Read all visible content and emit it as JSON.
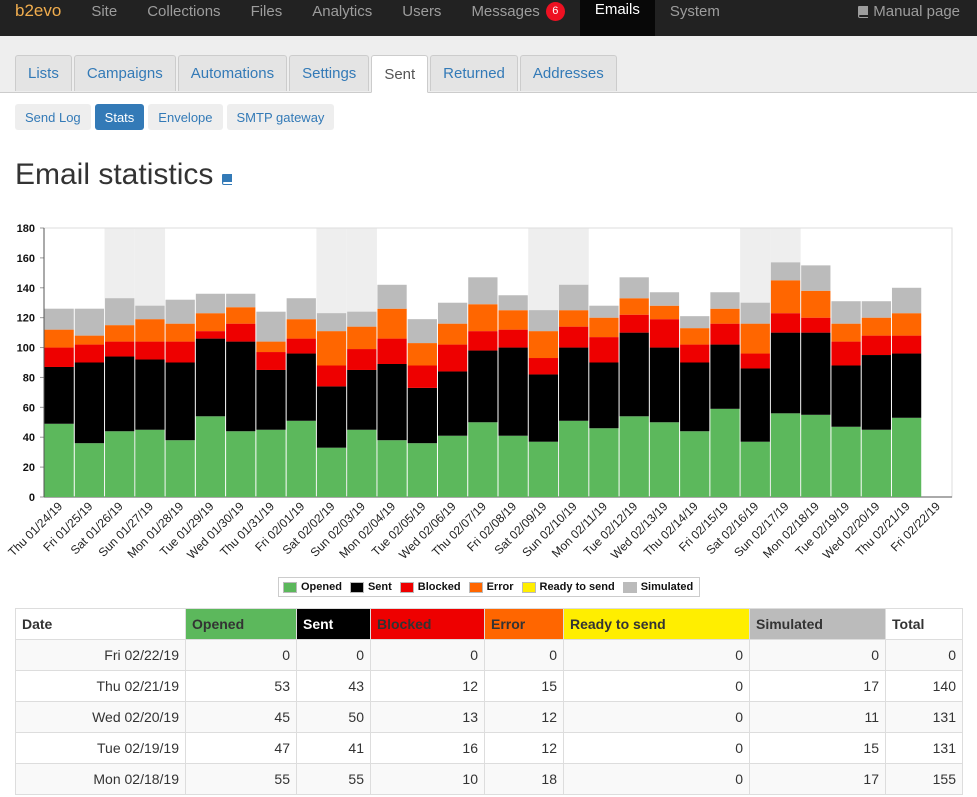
{
  "navbar": {
    "brand": "b2evo",
    "items": [
      {
        "label": "Site"
      },
      {
        "label": "Collections"
      },
      {
        "label": "Files"
      },
      {
        "label": "Analytics"
      },
      {
        "label": "Users"
      },
      {
        "label": "Messages",
        "badge": "6"
      },
      {
        "label": "Emails",
        "active": true
      },
      {
        "label": "System"
      }
    ],
    "manual": "Manual page"
  },
  "tabs": [
    "Lists",
    "Campaigns",
    "Automations",
    "Settings",
    "Sent",
    "Returned",
    "Addresses"
  ],
  "active_tab": "Sent",
  "subtabs": [
    "Send Log",
    "Stats",
    "Envelope",
    "SMTP gateway"
  ],
  "active_subtab": "Stats",
  "page_title": "Email statistics",
  "colors": {
    "opened": "#5cb85c",
    "sent": "#000000",
    "blocked": "#ee0000",
    "error": "#ff6600",
    "ready": "#ffee00",
    "simulated": "#bbbbbb"
  },
  "chart_data": {
    "type": "bar",
    "stacked": true,
    "ylim": [
      0,
      180
    ],
    "yticks": [
      0,
      20,
      40,
      60,
      80,
      100,
      120,
      140,
      160,
      180
    ],
    "weekend_shading": true,
    "legend_position": "bottom",
    "categories": [
      "Thu 01/24/19",
      "Fri 01/25/19",
      "Sat 01/26/19",
      "Sun 01/27/19",
      "Mon 01/28/19",
      "Tue 01/29/19",
      "Wed 01/30/19",
      "Thu 01/31/19",
      "Fri 02/01/19",
      "Sat 02/02/19",
      "Sun 02/03/19",
      "Mon 02/04/19",
      "Tue 02/05/19",
      "Wed 02/06/19",
      "Thu 02/07/19",
      "Fri 02/08/19",
      "Sat 02/09/19",
      "Sun 02/10/19",
      "Mon 02/11/19",
      "Tue 02/12/19",
      "Wed 02/13/19",
      "Thu 02/14/19",
      "Fri 02/15/19",
      "Sat 02/16/19",
      "Sun 02/17/19",
      "Mon 02/18/19",
      "Tue 02/19/19",
      "Wed 02/20/19",
      "Thu 02/21/19",
      "Fri 02/22/19"
    ],
    "series": [
      {
        "name": "Opened",
        "color": "#5cb85c",
        "values": [
          49,
          36,
          44,
          45,
          38,
          54,
          44,
          45,
          51,
          33,
          45,
          38,
          36,
          41,
          50,
          41,
          37,
          51,
          46,
          54,
          50,
          44,
          59,
          37,
          56,
          55,
          47,
          45,
          53,
          0
        ]
      },
      {
        "name": "Sent",
        "color": "#000000",
        "values": [
          38,
          54,
          50,
          47,
          52,
          52,
          60,
          40,
          45,
          41,
          40,
          51,
          37,
          43,
          48,
          59,
          45,
          49,
          44,
          56,
          50,
          46,
          43,
          49,
          54,
          55,
          41,
          50,
          43,
          0
        ]
      },
      {
        "name": "Blocked",
        "color": "#ee0000",
        "values": [
          13,
          12,
          10,
          12,
          14,
          5,
          12,
          12,
          10,
          14,
          14,
          17,
          15,
          18,
          13,
          12,
          11,
          14,
          17,
          12,
          19,
          12,
          14,
          10,
          13,
          10,
          16,
          13,
          12,
          0
        ]
      },
      {
        "name": "Error",
        "color": "#ff6600",
        "values": [
          12,
          6,
          11,
          15,
          12,
          12,
          11,
          7,
          13,
          23,
          15,
          20,
          15,
          14,
          18,
          13,
          18,
          11,
          13,
          11,
          9,
          11,
          10,
          20,
          22,
          18,
          12,
          12,
          15,
          0
        ]
      },
      {
        "name": "Ready to send",
        "color": "#ffee00",
        "values": [
          0,
          0,
          0,
          0,
          0,
          0,
          0,
          0,
          0,
          0,
          0,
          0,
          0,
          0,
          0,
          0,
          0,
          0,
          0,
          0,
          0,
          0,
          0,
          0,
          0,
          0,
          0,
          0,
          0,
          0
        ]
      },
      {
        "name": "Simulated",
        "color": "#bbbbbb",
        "values": [
          14,
          18,
          18,
          9,
          16,
          13,
          9,
          20,
          14,
          12,
          10,
          16,
          16,
          14,
          18,
          10,
          14,
          17,
          8,
          14,
          9,
          8,
          11,
          14,
          12,
          17,
          15,
          11,
          17,
          0
        ]
      }
    ]
  },
  "table": {
    "columns": [
      "Date",
      "Opened",
      "Sent",
      "Blocked",
      "Error",
      "Ready to send",
      "Simulated",
      "Total"
    ],
    "rows": [
      [
        "Fri 02/22/19",
        "0",
        "0",
        "0",
        "0",
        "0",
        "0",
        "0"
      ],
      [
        "Thu 02/21/19",
        "53",
        "43",
        "12",
        "15",
        "0",
        "17",
        "140"
      ],
      [
        "Wed 02/20/19",
        "45",
        "50",
        "13",
        "12",
        "0",
        "11",
        "131"
      ],
      [
        "Tue 02/19/19",
        "47",
        "41",
        "16",
        "12",
        "0",
        "15",
        "131"
      ],
      [
        "Mon 02/18/19",
        "55",
        "55",
        "10",
        "18",
        "0",
        "17",
        "155"
      ]
    ]
  }
}
